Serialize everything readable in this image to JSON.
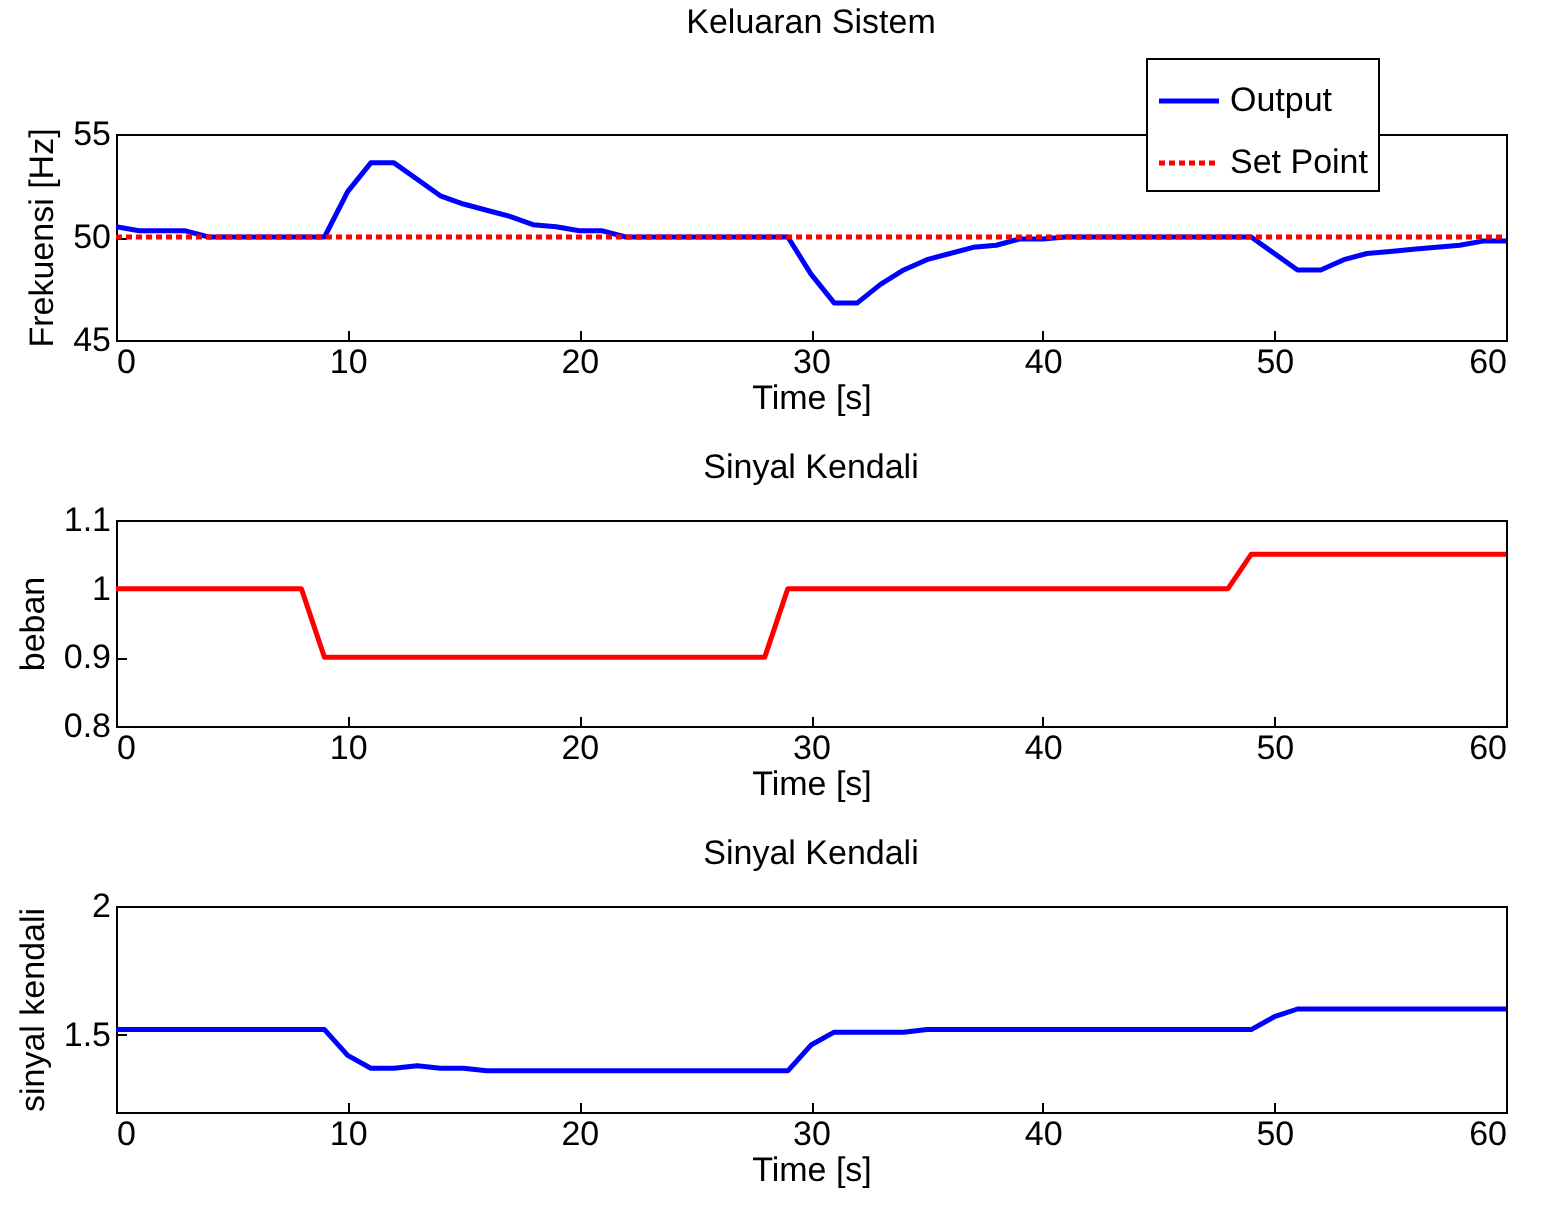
{
  "chart_data": [
    {
      "type": "line",
      "title": "Keluaran Sistem",
      "xlabel": "Time [s]",
      "ylabel": "Frekuensi [Hz]",
      "xlim": [
        0,
        60
      ],
      "xticks": [
        0,
        10,
        20,
        30,
        40,
        50,
        60
      ],
      "ylim": [
        45,
        55
      ],
      "yticks": [
        45,
        50,
        55
      ],
      "grid": false,
      "legend": "top right",
      "series": [
        {
          "name": "Output",
          "color": "#0000ff",
          "line_style": "solid",
          "x": [
            0,
            1,
            3,
            4,
            9,
            10,
            11,
            12,
            13,
            14,
            15,
            16,
            17,
            18,
            19,
            20,
            21,
            22,
            29,
            30,
            31,
            32,
            33,
            34,
            35,
            36,
            37,
            38,
            39,
            40,
            41,
            49,
            50,
            51,
            52,
            53,
            54,
            55,
            56,
            57,
            58,
            59,
            60
          ],
          "values": [
            50.5,
            50.3,
            50.3,
            50,
            50,
            52.2,
            53.6,
            53.6,
            52.8,
            52.0,
            51.6,
            51.3,
            51.0,
            50.6,
            50.5,
            50.3,
            50.3,
            50,
            50,
            48.2,
            46.8,
            46.8,
            47.7,
            48.4,
            48.9,
            49.2,
            49.5,
            49.6,
            49.9,
            49.9,
            50,
            50,
            49.2,
            48.4,
            48.4,
            48.9,
            49.2,
            49.3,
            49.4,
            49.5,
            49.6,
            49.8,
            49.8
          ]
        },
        {
          "name": "Set Point",
          "color": "#ff0000",
          "line_style": "dotted",
          "x": [
            0,
            60
          ],
          "values": [
            50,
            50
          ]
        }
      ]
    },
    {
      "type": "line",
      "title": "Sinyal Kendali",
      "xlabel": "Time [s]",
      "ylabel": "beban",
      "xlim": [
        0,
        60
      ],
      "xticks": [
        0,
        10,
        20,
        30,
        40,
        50,
        60
      ],
      "ylim": [
        0.8,
        1.1
      ],
      "yticks": [
        0.8,
        0.9,
        1,
        1.1
      ],
      "grid": false,
      "series": [
        {
          "color": "#ff0000",
          "line_style": "solid",
          "x": [
            0,
            8,
            9,
            28,
            29,
            48,
            49,
            60
          ],
          "values": [
            1,
            1,
            0.9,
            0.9,
            1,
            1,
            1.05,
            1.05
          ]
        }
      ]
    },
    {
      "type": "line",
      "title": "Sinyal Kendali",
      "xlabel": "Time [s]",
      "ylabel": "sinyal kendali",
      "xlim": [
        0,
        60
      ],
      "xticks": [
        0,
        10,
        20,
        30,
        40,
        50,
        60
      ],
      "ylim": [
        1.2,
        2
      ],
      "yticks": [
        1.5,
        2
      ],
      "grid": false,
      "series": [
        {
          "color": "#0000ff",
          "line_style": "solid",
          "x": [
            0,
            9,
            10,
            11,
            12,
            13,
            14,
            15,
            16,
            29,
            30,
            31,
            34,
            35,
            49,
            50,
            51,
            60
          ],
          "values": [
            1.52,
            1.52,
            1.42,
            1.37,
            1.37,
            1.38,
            1.37,
            1.37,
            1.36,
            1.36,
            1.46,
            1.51,
            1.51,
            1.52,
            1.52,
            1.57,
            1.6,
            1.6
          ]
        }
      ]
    }
  ]
}
